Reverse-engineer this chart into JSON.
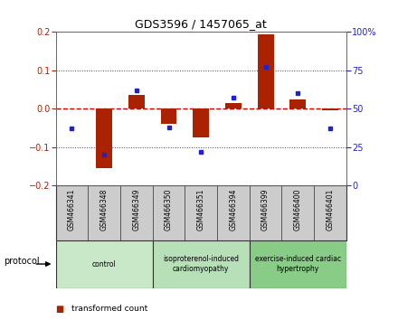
{
  "title": "GDS3596 / 1457065_at",
  "samples": [
    "GSM466341",
    "GSM466348",
    "GSM466349",
    "GSM466350",
    "GSM466351",
    "GSM466394",
    "GSM466399",
    "GSM466400",
    "GSM466401"
  ],
  "transformed_count": [
    0.0,
    -0.155,
    0.035,
    -0.04,
    -0.075,
    0.015,
    0.195,
    0.025,
    -0.005
  ],
  "percentile_rank": [
    37,
    20,
    62,
    38,
    22,
    57,
    77,
    60,
    37
  ],
  "groups": [
    {
      "label": "control",
      "start": 0,
      "end": 3,
      "color": "#c8e8c8"
    },
    {
      "label": "isoproterenol-induced\ncardiomyopathy",
      "start": 3,
      "end": 6,
      "color": "#b8e0b8"
    },
    {
      "label": "exercise-induced cardiac\nhypertrophy",
      "start": 6,
      "end": 9,
      "color": "#88cc88"
    }
  ],
  "bar_color": "#aa2200",
  "dot_color": "#2222cc",
  "ylim_left": [
    -0.2,
    0.2
  ],
  "ylim_right": [
    0,
    100
  ],
  "yticks_left": [
    -0.2,
    -0.1,
    0.0,
    0.1,
    0.2
  ],
  "yticks_right": [
    0,
    25,
    50,
    75,
    100
  ],
  "hline_color": "#cc0000",
  "dotted_color": "#444444",
  "sample_box_color": "#cccccc",
  "bar_width": 0.5
}
